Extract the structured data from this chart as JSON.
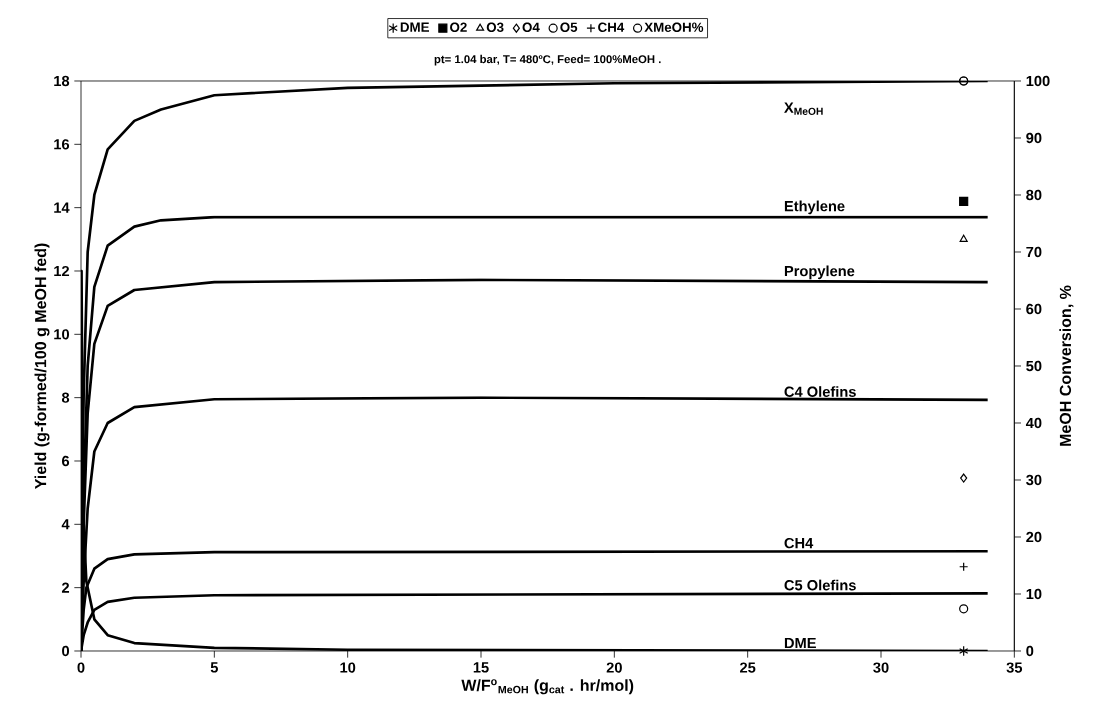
{
  "chart_data": {
    "type": "line",
    "title": "pt= 1.04 bar, T= 480ºC, Feed= 100%MeOH .",
    "xlabel": "W/F$^{o}$$_{MeOH}$ (g$_{cat}$ . hr/mol)",
    "ylabel": "Yield (g-formed/100 g MeOH fed)",
    "y2label": "MeOH Conversion, %",
    "xlim": [
      0,
      35
    ],
    "ylim": [
      0,
      18
    ],
    "y2lim": [
      0,
      100
    ],
    "xticks": [
      0,
      5,
      10,
      15,
      20,
      25,
      30,
      35
    ],
    "yticks": [
      0,
      2,
      4,
      6,
      8,
      10,
      12,
      14,
      16,
      18
    ],
    "y2ticks": [
      0,
      10,
      20,
      30,
      40,
      50,
      60,
      70,
      80,
      90,
      100
    ],
    "legend": "top",
    "grid": false,
    "series": [
      {
        "name": "X$_{MeOH}$",
        "type": "line",
        "axis": "y2",
        "color": "#000000",
        "marker": "none",
        "line_style": "solid",
        "x": [
          0,
          0.05,
          0.1,
          0.25,
          0.5,
          1,
          2,
          3,
          5,
          10,
          20,
          34
        ],
        "values": [
          0,
          30,
          45,
          70,
          80,
          88,
          93,
          95,
          97.5,
          98.8,
          99.6,
          100
        ]
      },
      {
        "name": "Ethylene",
        "type": "line",
        "color": "#000000",
        "marker": "none",
        "line_style": "solid",
        "x": [
          0,
          0.1,
          0.25,
          0.5,
          1,
          2,
          3,
          5,
          15,
          34
        ],
        "values": [
          0,
          5,
          9,
          11.5,
          12.8,
          13.4,
          13.6,
          13.7,
          13.7,
          13.7
        ]
      },
      {
        "name": "Propylene",
        "type": "line",
        "color": "#000000",
        "marker": "none",
        "line_style": "solid",
        "x": [
          0,
          0.1,
          0.25,
          0.5,
          1,
          2,
          5,
          15,
          34
        ],
        "values": [
          0,
          4,
          7.5,
          9.7,
          10.9,
          11.4,
          11.65,
          11.72,
          11.65
        ]
      },
      {
        "name": "C4 Olefins",
        "type": "line",
        "color": "#000000",
        "marker": "none",
        "line_style": "solid",
        "x": [
          0,
          0.1,
          0.25,
          0.5,
          1,
          2,
          5,
          15,
          34
        ],
        "values": [
          0,
          2.2,
          4.5,
          6.3,
          7.2,
          7.7,
          7.95,
          8.0,
          7.93
        ]
      },
      {
        "name": "CH4",
        "type": "line",
        "color": "#000000",
        "marker": "none",
        "line_style": "solid",
        "x": [
          0,
          0.1,
          0.2,
          0.5,
          1,
          2,
          5,
          34
        ],
        "values": [
          0,
          1.3,
          2.0,
          2.6,
          2.9,
          3.05,
          3.12,
          3.15
        ]
      },
      {
        "name": "C5 Olefins",
        "type": "line",
        "color": "#000000",
        "marker": "none",
        "line_style": "solid",
        "x": [
          0,
          0.1,
          0.25,
          0.5,
          1,
          2,
          5,
          34
        ],
        "values": [
          0,
          0.5,
          0.9,
          1.3,
          1.55,
          1.68,
          1.76,
          1.82
        ]
      },
      {
        "name": "DME",
        "type": "line",
        "color": "#000000",
        "marker": "none",
        "line_style": "solid",
        "x": [
          0,
          0.02,
          0.05,
          0.1,
          0.2,
          0.5,
          1,
          2,
          5,
          10,
          34
        ],
        "values": [
          0,
          12,
          7,
          4,
          2.2,
          1.0,
          0.5,
          0.25,
          0.1,
          0.04,
          0
        ]
      },
      {
        "name": "DME",
        "type": "scatter",
        "color": "#000000",
        "marker": "cross",
        "x": [
          33.1
        ],
        "values": [
          0
        ]
      },
      {
        "name": "O2",
        "type": "scatter",
        "color": "#000000",
        "marker": "square",
        "x": [
          33.1
        ],
        "values": [
          14.2
        ]
      },
      {
        "name": "O3",
        "type": "scatter",
        "color": "#000000",
        "marker": "triangle",
        "x": [
          33.1
        ],
        "values": [
          13.0
        ]
      },
      {
        "name": "O4",
        "type": "scatter",
        "color": "#000000",
        "marker": "diamond",
        "x": [
          33.1
        ],
        "values": [
          5.46
        ]
      },
      {
        "name": "O5",
        "type": "scatter",
        "color": "#000000",
        "marker": "circle",
        "x": [
          33.1
        ],
        "values": [
          1.33
        ]
      },
      {
        "name": "CH4",
        "type": "scatter",
        "color": "#000000",
        "x": [
          33.1
        ],
        "values": [
          2.66
        ]
      },
      {
        "name": "XMeOH%",
        "type": "scatter",
        "axis": "y2",
        "color": "#000000",
        "marker": "circle",
        "x": [
          33.1
        ],
        "values": [
          100
        ]
      }
    ]
  }
}
